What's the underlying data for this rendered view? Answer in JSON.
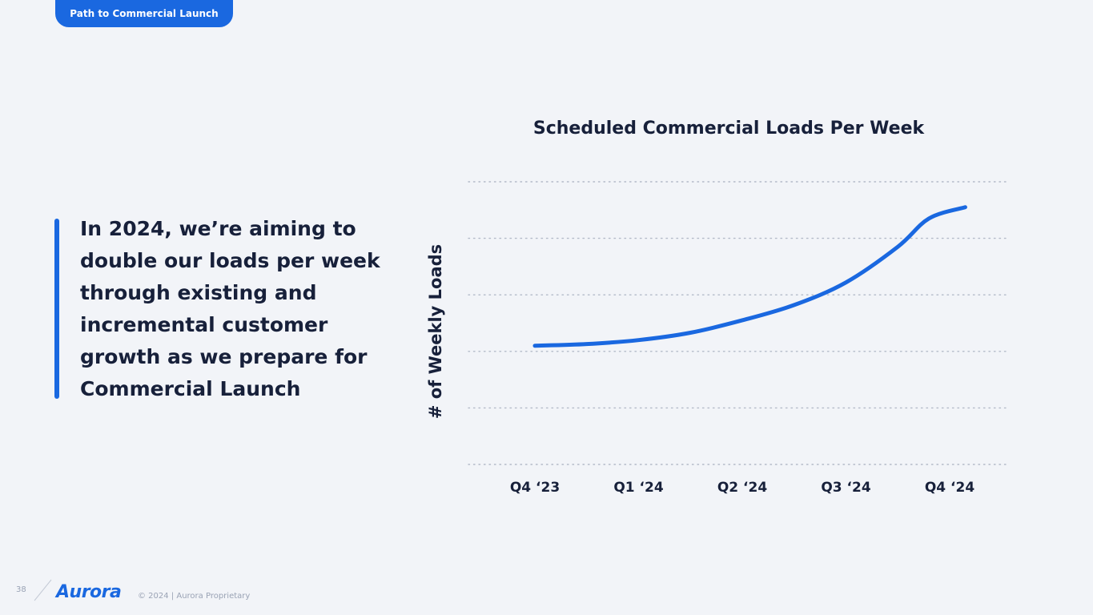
{
  "section_tab": "Path to Commercial Launch",
  "lead_text": "In 2024, we’re aiming to double our loads per week through existing and incremental customer growth as we prepare for Commercial Launch",
  "colors": {
    "accent": "#1a68e0",
    "text": "#17203a",
    "background": "#f2f4f8"
  },
  "chart_data": {
    "type": "line",
    "title": "Scheduled Commercial Loads Per Week",
    "xlabel": "",
    "ylabel": "# of Weekly Loads",
    "categories": [
      "Q4 ‘23",
      "Q1 ‘24",
      "Q2 ‘24",
      "Q3 ‘24",
      "Q4 ‘24"
    ],
    "x": [
      0,
      0.5,
      1,
      1.5,
      2,
      2.5,
      3,
      3.5,
      3.8,
      4.15
    ],
    "y": [
      2.1,
      2.13,
      2.2,
      2.33,
      2.55,
      2.82,
      3.22,
      3.85,
      4.35,
      4.55
    ],
    "ylim": [
      0,
      5
    ],
    "grid": true,
    "grid_style": "dotted",
    "y_tick_labels_visible": false
  },
  "footer": {
    "page_number": "38",
    "logo": "Aurora",
    "copyright": "© 2024 | Aurora Proprietary"
  }
}
